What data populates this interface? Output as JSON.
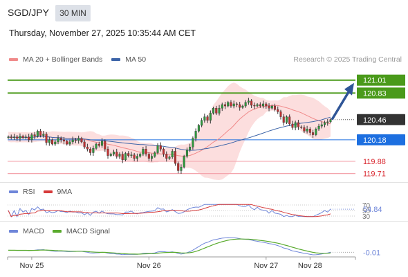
{
  "header": {
    "pair": "SGD/JPY",
    "timeframe": "30 MIN",
    "datetime": "Thursday, November 27, 2025 10:35:44 AM CET"
  },
  "legend": {
    "ma20_label": "MA 20 + Bollinger Bands",
    "ma50_label": "MA 50",
    "credit": "Research © 2025 Trading Central",
    "rsi_label": "RSI",
    "rsi_ma_label": "9MA",
    "macd_label": "MACD",
    "macd_signal_label": "MACD Signal"
  },
  "colors": {
    "bullish_line": "#4a9a1a",
    "current_price_tag": "#333333",
    "pivot_tag": "#1d6fe0",
    "support_line": "#f4a5ad",
    "support_text": "#d9242c",
    "bollinger_fill": "#fbd3d3",
    "ma20": "#f08a8a",
    "ma50": "#3c64a8",
    "arrow": "#2f5597",
    "rsi": "#6f86d9",
    "rsi_ma": "#d63a3a",
    "macd": "#6f86d9",
    "macd_signal": "#5aab2e"
  },
  "chart_data": [
    {
      "type": "candlestick",
      "x_ticks": [
        "Nov 25",
        "Nov 26",
        "Nov 27",
        "Nov 28"
      ],
      "ylim": [
        119.6,
        121.2
      ],
      "levels": [
        {
          "value": 121.01,
          "label": "121.01",
          "kind": "resistance"
        },
        {
          "value": 120.83,
          "label": "120.83",
          "kind": "resistance"
        },
        {
          "value": 120.46,
          "label": "120.46",
          "kind": "current"
        },
        {
          "value": 120.18,
          "label": "120.18",
          "kind": "pivot"
        },
        {
          "value": 119.88,
          "label": "119.88",
          "kind": "support"
        },
        {
          "value": 119.71,
          "label": "119.71",
          "kind": "support"
        }
      ],
      "close": [
        120.22,
        120.21,
        120.22,
        120.2,
        120.23,
        120.21,
        120.22,
        120.18,
        120.25,
        120.23,
        120.3,
        120.24,
        120.26,
        120.14,
        120.18,
        120.12,
        120.15,
        120.2,
        120.18,
        120.16,
        120.12,
        120.15,
        120.18,
        120.17,
        120.2,
        120.15,
        120.08,
        120.05,
        120.0,
        120.06,
        120.12,
        120.1,
        120.16,
        120.05,
        119.96,
        119.98,
        120.01,
        119.95,
        119.98,
        119.9,
        119.99,
        119.96,
        119.97,
        119.92,
        119.95,
        119.98,
        120.05,
        119.98,
        119.92,
        119.95,
        120.0,
        120.1,
        120.05,
        119.98,
        119.92,
        119.94,
        120.02,
        119.85,
        119.75,
        119.8,
        119.95,
        120.04,
        120.08,
        120.2,
        120.3,
        120.38,
        120.45,
        120.5,
        120.45,
        120.55,
        120.62,
        120.55,
        120.62,
        120.67,
        120.65,
        120.7,
        120.65,
        120.68,
        120.67,
        120.63,
        120.65,
        120.7,
        120.72,
        120.66,
        120.65,
        120.67,
        120.65,
        120.68,
        120.65,
        120.62,
        120.65,
        120.6,
        120.57,
        120.5,
        120.42,
        120.5,
        120.4,
        120.35,
        120.42,
        120.36,
        120.35,
        120.3,
        120.33,
        120.28,
        120.25,
        120.33,
        120.37,
        120.39,
        120.42,
        120.43,
        120.46
      ],
      "yticks_rsi": [
        70,
        50,
        30
      ],
      "rsi_last": "54.84",
      "macd_last": "-0.01"
    }
  ]
}
